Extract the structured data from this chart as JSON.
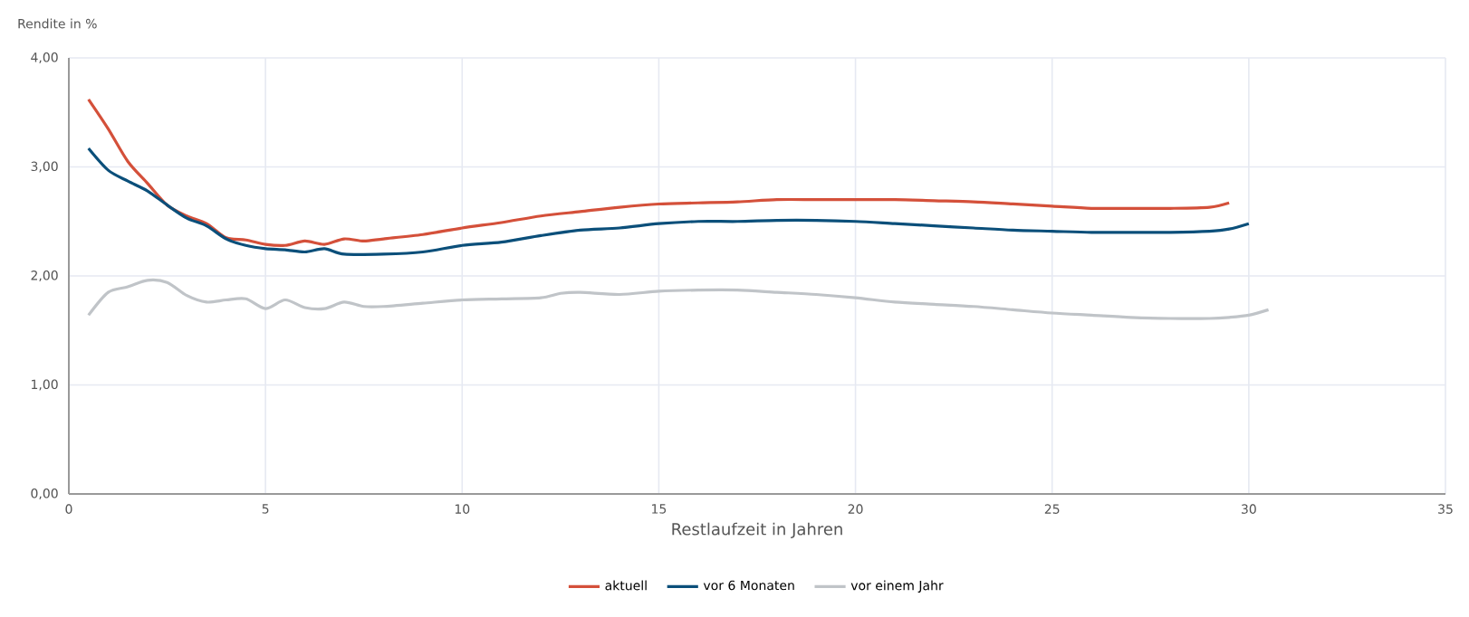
{
  "chart_data": {
    "type": "line",
    "xlabel": "Restlaufzeit in Jahren",
    "ylabel": "Rendite in  %",
    "xlim": [
      0,
      35
    ],
    "xticks": [
      0,
      5,
      10,
      15,
      20,
      25,
      30,
      35
    ],
    "ylim": [
      0,
      4
    ],
    "yticks": [
      {
        "value": 0,
        "label": "0,00"
      },
      {
        "value": 1,
        "label": "1,00"
      },
      {
        "value": 2,
        "label": "2,00"
      },
      {
        "value": 3,
        "label": "3,00"
      },
      {
        "value": 4,
        "label": "4,00"
      }
    ],
    "grid": true,
    "legend": "bottom",
    "series": [
      {
        "name": "aktuell",
        "color": "#d4503a",
        "x": [
          0.5,
          1,
          1.5,
          2,
          2.5,
          3,
          3.5,
          4,
          4.5,
          5,
          5.5,
          6,
          6.5,
          7,
          7.5,
          8,
          9,
          10,
          11,
          12,
          13,
          14,
          15,
          16,
          17,
          18,
          19,
          20,
          21,
          22,
          23,
          24,
          25,
          26,
          27,
          28,
          29,
          29.5
        ],
        "values": [
          3.62,
          3.35,
          3.05,
          2.85,
          2.65,
          2.55,
          2.48,
          2.35,
          2.33,
          2.29,
          2.28,
          2.32,
          2.29,
          2.34,
          2.32,
          2.34,
          2.38,
          2.44,
          2.49,
          2.55,
          2.59,
          2.63,
          2.66,
          2.67,
          2.68,
          2.7,
          2.7,
          2.7,
          2.7,
          2.69,
          2.68,
          2.66,
          2.64,
          2.62,
          2.62,
          2.62,
          2.63,
          2.67
        ]
      },
      {
        "name": "vor 6 Monaten",
        "color": "#0b4f7a",
        "x": [
          0.5,
          1,
          1.5,
          2,
          2.5,
          3,
          3.5,
          4,
          4.5,
          5,
          5.5,
          6,
          6.5,
          7,
          8,
          9,
          10,
          11,
          12,
          13,
          14,
          15,
          16,
          17,
          18,
          19,
          20,
          21,
          22,
          23,
          24,
          25,
          26,
          27,
          28,
          29,
          29.5,
          30
        ],
        "values": [
          3.17,
          2.97,
          2.87,
          2.78,
          2.65,
          2.53,
          2.46,
          2.34,
          2.28,
          2.25,
          2.24,
          2.22,
          2.25,
          2.2,
          2.2,
          2.22,
          2.28,
          2.31,
          2.37,
          2.42,
          2.44,
          2.48,
          2.5,
          2.5,
          2.51,
          2.51,
          2.5,
          2.48,
          2.46,
          2.44,
          2.42,
          2.41,
          2.4,
          2.4,
          2.4,
          2.41,
          2.43,
          2.48
        ]
      },
      {
        "name": "vor einem Jahr",
        "color": "#c0c4c8",
        "x": [
          0.5,
          1,
          1.5,
          2,
          2.5,
          3,
          3.5,
          4,
          4.5,
          5,
          5.5,
          6,
          6.5,
          7,
          7.5,
          8,
          9,
          10,
          11,
          12,
          12.5,
          13,
          14,
          15,
          16,
          17,
          18,
          19,
          20,
          21,
          22,
          23,
          24,
          25,
          26,
          27,
          28,
          29,
          29.5,
          30,
          30.5
        ],
        "values": [
          1.64,
          1.85,
          1.9,
          1.96,
          1.94,
          1.82,
          1.76,
          1.78,
          1.79,
          1.7,
          1.78,
          1.71,
          1.7,
          1.76,
          1.72,
          1.72,
          1.75,
          1.78,
          1.79,
          1.8,
          1.84,
          1.85,
          1.83,
          1.86,
          1.87,
          1.87,
          1.85,
          1.83,
          1.8,
          1.76,
          1.74,
          1.72,
          1.69,
          1.66,
          1.64,
          1.62,
          1.61,
          1.61,
          1.62,
          1.64,
          1.69
        ]
      }
    ]
  }
}
